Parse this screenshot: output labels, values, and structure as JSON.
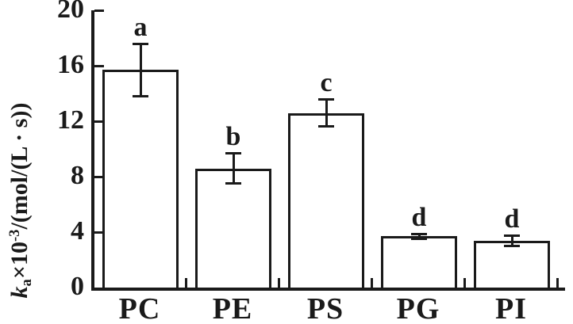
{
  "figure": {
    "background": "#ffffff",
    "ink_color": "#1a1a1a",
    "bar_fill": "#ffffff"
  },
  "y_axis": {
    "label_parts": {
      "symbol": "k",
      "subscript": "a",
      "times_base": "×10",
      "exponent": "-3",
      "units": "/(mol/(L · s))"
    }
  },
  "chart_data": {
    "type": "bar",
    "title": "",
    "xlabel": "",
    "ylabel": "ka×10-3/(mol/(L · s))",
    "categories": [
      "PC",
      "PE",
      "PS",
      "PG",
      "PI"
    ],
    "values": [
      15.7,
      8.6,
      12.6,
      3.7,
      3.4
    ],
    "error_bars": [
      1.9,
      1.1,
      1.0,
      0.2,
      0.4
    ],
    "significance_letters": [
      "a",
      "b",
      "c",
      "d",
      "d"
    ],
    "ylim": [
      0,
      20
    ],
    "yticks": [
      0,
      4,
      8,
      12,
      16,
      20
    ],
    "ytick_labels": [
      "0",
      "4",
      "8",
      "12",
      "16",
      "20"
    ],
    "grid": false,
    "legend": null,
    "bar_outline_color": "#1a1a1a",
    "bar_fill_color": "#ffffff"
  }
}
